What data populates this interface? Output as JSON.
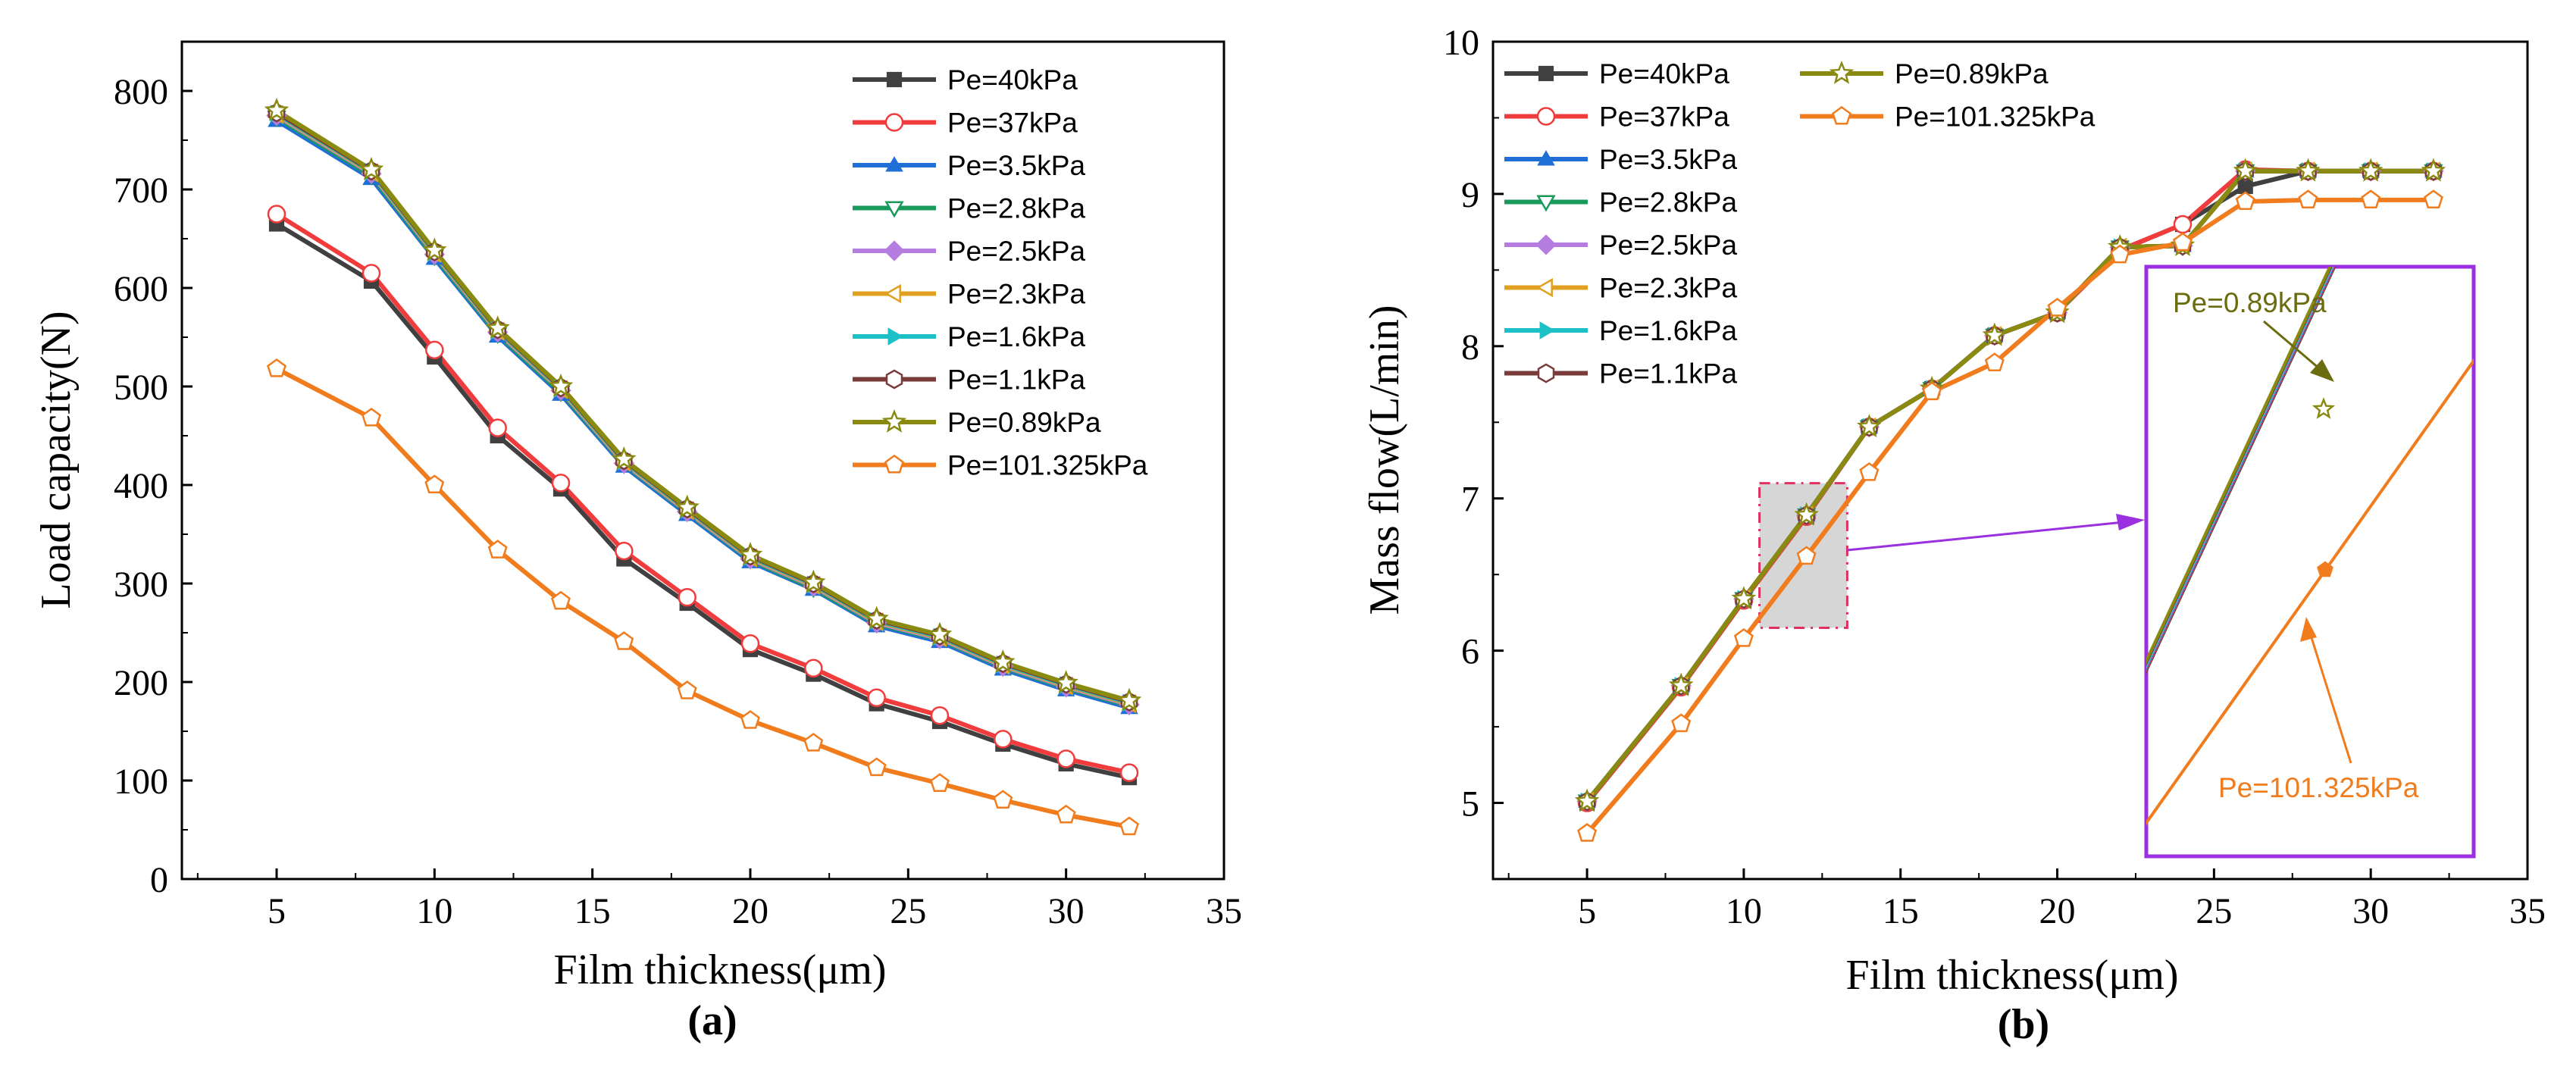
{
  "chart_data": [
    {
      "type": "line",
      "panel_label": "(a)",
      "xlabel": "Film thickness(μm)",
      "ylabel": "Load capacity(N)",
      "xlim": [
        2,
        35
      ],
      "ylim": [
        0,
        850
      ],
      "xticks": [
        5,
        10,
        15,
        20,
        25,
        30,
        35
      ],
      "yticks": [
        0,
        100,
        200,
        300,
        400,
        500,
        600,
        700,
        800
      ],
      "legend_position": "top-right",
      "x": [
        5,
        8,
        10,
        12,
        14,
        16,
        18,
        20,
        22,
        24,
        26,
        28,
        30,
        32
      ],
      "series": [
        {
          "name": "Pe=40kPa",
          "color": "#404040",
          "marker": "square",
          "values": [
            665,
            607,
            530,
            450,
            396,
            325,
            280,
            233,
            208,
            178,
            160,
            137,
            117,
            103
          ]
        },
        {
          "name": "Pe=37kPa",
          "color": "#f03c3c",
          "marker": "circle",
          "values": [
            675,
            615,
            537,
            458,
            402,
            333,
            286,
            239,
            214,
            184,
            166,
            142,
            122,
            108
          ]
        },
        {
          "name": "Pe=3.5kPa",
          "color": "#1f6fd6",
          "marker": "triangle-up",
          "values": [
            770,
            711,
            630,
            551,
            492,
            419,
            370,
            322,
            294,
            257,
            241,
            213,
            192,
            174
          ]
        },
        {
          "name": "Pe=2.8kPa",
          "color": "#1a9a5a",
          "marker": "triangle-down",
          "values": [
            773,
            714,
            632,
            553,
            494,
            421,
            372,
            324,
            295,
            259,
            243,
            215,
            194,
            176
          ]
        },
        {
          "name": "Pe=2.5kPa",
          "color": "#b67de0",
          "marker": "diamond",
          "values": [
            775,
            716,
            634,
            555,
            496,
            422,
            373,
            325,
            297,
            260,
            244,
            216,
            195,
            177
          ]
        },
        {
          "name": "Pe=2.3kPa",
          "color": "#e0a020",
          "marker": "triangle-left",
          "values": [
            776,
            717,
            635,
            556,
            497,
            423,
            374,
            326,
            298,
            261,
            245,
            217,
            196,
            178
          ]
        },
        {
          "name": "Pe=1.6kPa",
          "color": "#1ec0c8",
          "marker": "triangle-right",
          "values": [
            777,
            718,
            636,
            557,
            498,
            424,
            375,
            327,
            299,
            262,
            246,
            218,
            197,
            179
          ]
        },
        {
          "name": "Pe=1.1kPa",
          "color": "#7a3b3b",
          "marker": "hexagon",
          "values": [
            778,
            719,
            637,
            558,
            499,
            425,
            376,
            328,
            300,
            263,
            247,
            219,
            198,
            180
          ]
        },
        {
          "name": "Pe=0.89kPa",
          "color": "#8a8a10",
          "marker": "star",
          "values": [
            780,
            720,
            638,
            559,
            500,
            426,
            377,
            329,
            301,
            264,
            248,
            220,
            199,
            181
          ]
        },
        {
          "name": "Pe=101.325kPa",
          "color": "#f07c1e",
          "marker": "pentagon",
          "values": [
            518,
            468,
            400,
            334,
            282,
            241,
            191,
            161,
            138,
            113,
            97,
            80,
            65,
            53
          ]
        }
      ]
    },
    {
      "type": "line",
      "panel_label": "(b)",
      "xlabel": "Film thickness(μm)",
      "ylabel": "Mass flow(L/min)",
      "xlim": [
        2,
        35
      ],
      "ylim": [
        4.5,
        10
      ],
      "xticks": [
        5,
        10,
        15,
        20,
        25,
        30,
        35
      ],
      "yticks": [
        5,
        6,
        7,
        8,
        9,
        10
      ],
      "legend_position": "top-left, two columns",
      "x": [
        5,
        8,
        10,
        12,
        14,
        16,
        18,
        20,
        22,
        24,
        26,
        28,
        30,
        32
      ],
      "series": [
        {
          "name": "Pe=40kPa",
          "color": "#404040",
          "marker": "square",
          "values": [
            5.0,
            5.76,
            6.33,
            6.88,
            7.47,
            7.72,
            8.07,
            8.22,
            8.63,
            8.8,
            9.05,
            9.15,
            9.15,
            9.15
          ]
        },
        {
          "name": "Pe=37kPa",
          "color": "#f03c3c",
          "marker": "circle",
          "values": [
            5.0,
            5.76,
            6.33,
            6.88,
            7.47,
            7.72,
            8.07,
            8.22,
            8.63,
            8.8,
            9.16,
            9.15,
            9.15,
            9.15
          ]
        },
        {
          "name": "Pe=3.5kPa",
          "color": "#1f6fd6",
          "marker": "triangle-up",
          "values": [
            5.01,
            5.77,
            6.34,
            6.89,
            7.47,
            7.72,
            8.07,
            8.22,
            8.65,
            8.66,
            9.15,
            9.15,
            9.15,
            9.15
          ]
        },
        {
          "name": "Pe=2.8kPa",
          "color": "#1a9a5a",
          "marker": "triangle-down",
          "values": [
            5.01,
            5.77,
            6.34,
            6.89,
            7.47,
            7.72,
            8.07,
            8.22,
            8.65,
            8.66,
            9.15,
            9.15,
            9.15,
            9.15
          ]
        },
        {
          "name": "Pe=2.5kPa",
          "color": "#b67de0",
          "marker": "diamond",
          "values": [
            5.01,
            5.77,
            6.34,
            6.89,
            7.47,
            7.72,
            8.07,
            8.22,
            8.65,
            8.66,
            9.15,
            9.15,
            9.15,
            9.15
          ]
        },
        {
          "name": "Pe=2.3kPa",
          "color": "#e0a020",
          "marker": "triangle-left",
          "values": [
            5.01,
            5.77,
            6.34,
            6.89,
            7.47,
            7.72,
            8.07,
            8.22,
            8.65,
            8.66,
            9.15,
            9.15,
            9.15,
            9.15
          ]
        },
        {
          "name": "Pe=1.6kPa",
          "color": "#1ec0c8",
          "marker": "triangle-right",
          "values": [
            5.01,
            5.77,
            6.34,
            6.89,
            7.47,
            7.72,
            8.07,
            8.22,
            8.65,
            8.66,
            9.15,
            9.15,
            9.15,
            9.15
          ]
        },
        {
          "name": "Pe=1.1kPa",
          "color": "#7a3b3b",
          "marker": "hexagon",
          "values": [
            5.01,
            5.77,
            6.34,
            6.89,
            7.47,
            7.72,
            8.07,
            8.22,
            8.65,
            8.66,
            9.15,
            9.15,
            9.15,
            9.15
          ]
        },
        {
          "name": "Pe=0.89kPa",
          "color": "#8a8a10",
          "marker": "star",
          "values": [
            5.01,
            5.77,
            6.34,
            6.89,
            7.47,
            7.72,
            8.07,
            8.22,
            8.65,
            8.66,
            9.15,
            9.15,
            9.15,
            9.15
          ]
        },
        {
          "name": "Pe=101.325kPa",
          "color": "#f07c1e",
          "marker": "pentagon",
          "values": [
            4.8,
            5.52,
            6.08,
            6.62,
            7.17,
            7.7,
            7.89,
            8.25,
            8.6,
            8.68,
            8.95,
            8.96,
            8.96,
            8.96
          ]
        }
      ],
      "inset": {
        "highlight_x": [
          10.5,
          13.3
        ],
        "highlight_y": [
          6.15,
          7.1
        ],
        "frame_color": "#9b30e0",
        "highlight_color": "#e03060",
        "upper_label": "Pe=0.89kPa",
        "upper_label_color": "#6b6b10",
        "lower_label": "Pe=101.325kPa",
        "lower_label_color": "#f07c1e"
      }
    }
  ]
}
